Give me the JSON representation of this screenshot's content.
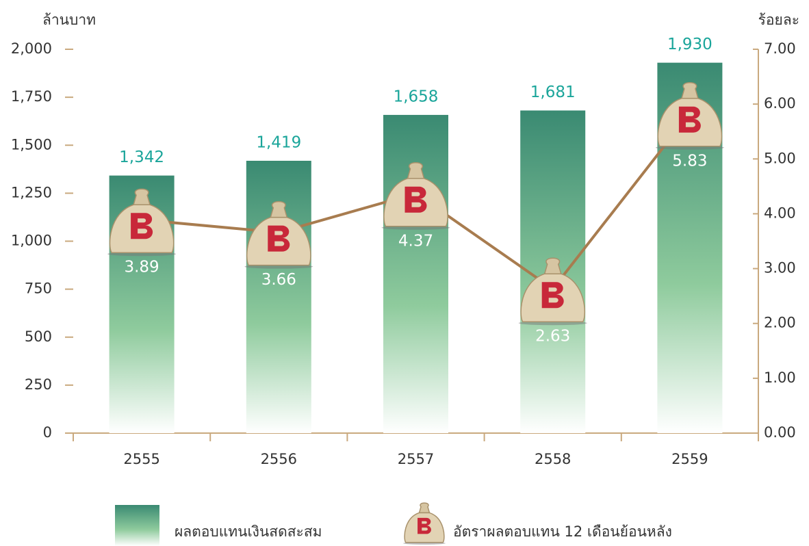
{
  "chart_data": {
    "type": "bar",
    "y_label": "ล้านบาท",
    "y2_label": "ร้อยละ",
    "categories": [
      "2555",
      "2556",
      "2557",
      "2558",
      "2559"
    ],
    "series": [
      {
        "name": "ผลตอบแทนเงินสดสะสม",
        "type": "bar",
        "color": "#3a8a72",
        "values": [
          1342,
          1419,
          1658,
          1681,
          1930
        ],
        "value_labels": [
          "1,342",
          "1,419",
          "1,658",
          "1,681",
          "1,930"
        ]
      },
      {
        "name": "อัตราผลตอบแทน 12 เดือนย้อนหลัง",
        "type": "line",
        "axis": "y2",
        "color": "#a87c4f",
        "values": [
          3.89,
          3.66,
          4.37,
          2.63,
          5.83
        ]
      }
    ],
    "ylim": [
      0,
      2000
    ],
    "yticks": [
      0,
      250,
      500,
      750,
      {
        "value": 1000,
        "label": "1,000"
      },
      {
        "value": 1250,
        "label": "1,250"
      },
      {
        "value": 1500,
        "label": "1,500"
      },
      {
        "value": 1750,
        "label": "1,750"
      },
      {
        "value": 2000,
        "label": "2,000"
      }
    ],
    "y2lim": [
      0,
      7
    ],
    "y2ticks": [
      {
        "value": 0,
        "label": "0.00"
      },
      {
        "value": 1,
        "label": "1.00"
      },
      {
        "value": 2,
        "label": "2.00"
      },
      {
        "value": 3,
        "label": "3.00"
      },
      {
        "value": 4,
        "label": "4.00"
      },
      {
        "value": 5,
        "label": "5.00"
      },
      {
        "value": 6,
        "label": "6.00"
      },
      {
        "value": 7,
        "label": "7.00"
      }
    ],
    "grid": false
  }
}
